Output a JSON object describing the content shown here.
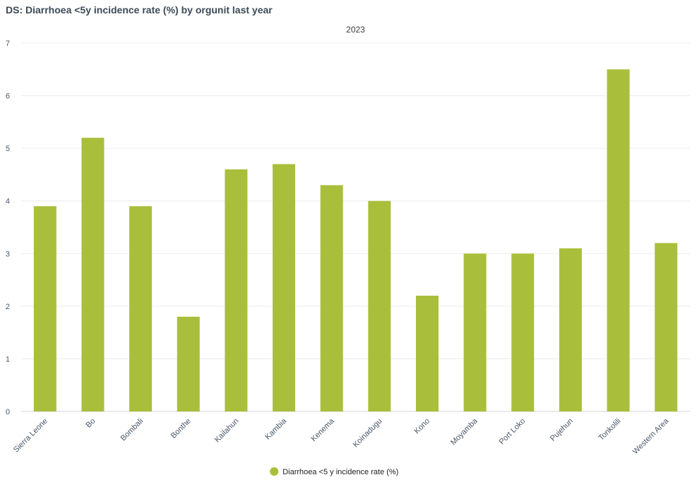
{
  "header": {
    "title": "DS: Diarrhoea <5y incidence rate (%) by orgunit last year"
  },
  "chart_data": {
    "type": "bar",
    "subtitle": "2023",
    "categories": [
      "Sierra Leone",
      "Bo",
      "Bombali",
      "Bonthe",
      "Kailahun",
      "Kambia",
      "Kenema",
      "Koinadugu",
      "Kono",
      "Moyamba",
      "Port Loko",
      "Pujehun",
      "Tonkolili",
      "Western Area"
    ],
    "series": [
      {
        "name": "Diarrhoea <5 y incidence rate (%)",
        "color": "#a9bf3b",
        "values": [
          3.9,
          5.2,
          3.9,
          1.8,
          4.6,
          4.7,
          4.3,
          4.0,
          2.2,
          3.0,
          3.0,
          3.1,
          6.5,
          3.2
        ]
      }
    ],
    "ylim": [
      0,
      7
    ],
    "yticks": [
      "0",
      "1",
      "2",
      "3",
      "4",
      "5",
      "6",
      "7"
    ],
    "grid": true,
    "legend_position": "bottom-center"
  }
}
